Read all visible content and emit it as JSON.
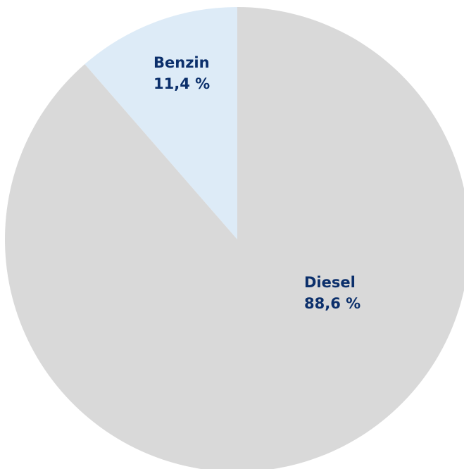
{
  "chart_data": {
    "type": "pie",
    "slices": [
      {
        "name": "Benzin",
        "value": 11.4,
        "value_label": "11,4 %",
        "color": "#ddebf7"
      },
      {
        "name": "Diesel",
        "value": 88.6,
        "value_label": "88,6 %",
        "color": "#d9d9d9"
      }
    ],
    "start_angle": "12 o'clock",
    "direction": "counter-clockwise from top for first slice",
    "label_color": "#0b2f6b",
    "legend": "none"
  }
}
